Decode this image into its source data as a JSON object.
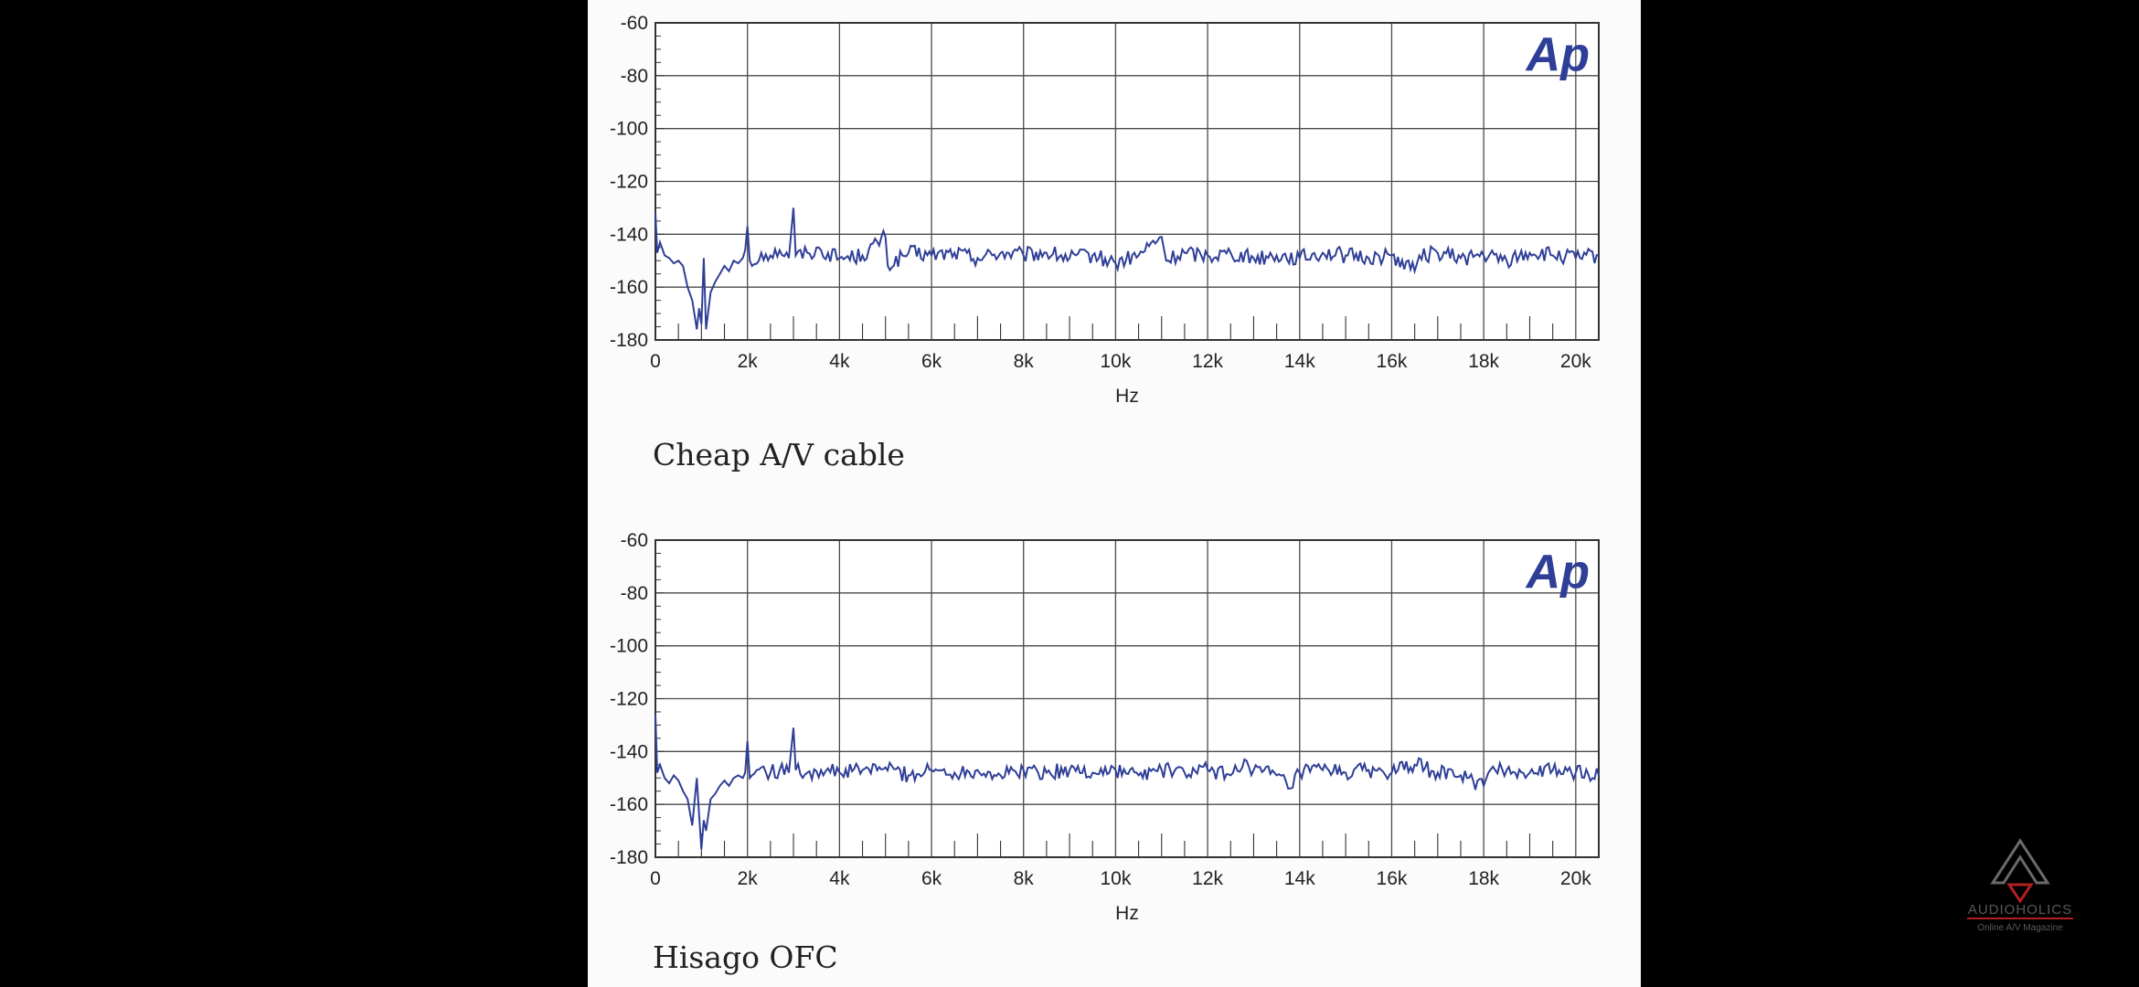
{
  "chart_data": [
    {
      "type": "line",
      "caption": "Cheap A/V cable",
      "logo_text": "Ap",
      "xlabel": "Hz",
      "ylabel": "",
      "xlim": [
        0,
        20500
      ],
      "ylim": [
        -180,
        -60
      ],
      "grid": true,
      "x_ticks": [
        0,
        2000,
        4000,
        6000,
        8000,
        10000,
        12000,
        14000,
        16000,
        18000,
        20000
      ],
      "x_tick_labels": [
        "0",
        "2k",
        "4k",
        "6k",
        "8k",
        "10k",
        "12k",
        "14k",
        "16k",
        "18k",
        "20k"
      ],
      "y_ticks": [
        -60,
        -80,
        -100,
        -120,
        -140,
        -160,
        -180
      ],
      "y_tick_labels": [
        "-60",
        "-80",
        "-100",
        "-120",
        "-140",
        "-160",
        "-180"
      ],
      "series": [
        {
          "color": "#2f3f97",
          "noise_floor_db": -148,
          "points": [
            [
              0,
              -132
            ],
            [
              40,
              -147
            ],
            [
              100,
              -143
            ],
            [
              200,
              -148
            ],
            [
              300,
              -149
            ],
            [
              400,
              -151
            ],
            [
              500,
              -150
            ],
            [
              600,
              -152
            ],
            [
              700,
              -160
            ],
            [
              800,
              -165
            ],
            [
              900,
              -176
            ],
            [
              950,
              -168
            ],
            [
              1000,
              -174
            ],
            [
              1050,
              -149
            ],
            [
              1100,
              -176
            ],
            [
              1200,
              -162
            ],
            [
              1300,
              -158
            ],
            [
              1400,
              -155
            ],
            [
              1500,
              -152
            ],
            [
              1600,
              -154
            ],
            [
              1700,
              -150
            ],
            [
              1800,
              -151
            ],
            [
              1900,
              -149
            ],
            [
              1950,
              -146
            ],
            [
              2000,
              -137
            ],
            [
              2050,
              -150
            ],
            [
              2100,
              -152
            ],
            [
              2300,
              -147
            ],
            [
              2500,
              -148
            ],
            [
              2700,
              -146
            ],
            [
              2900,
              -149
            ],
            [
              3000,
              -130
            ],
            [
              3050,
              -148
            ],
            [
              3300,
              -147
            ],
            [
              3600,
              -146
            ],
            [
              4000,
              -149
            ],
            [
              4500,
              -148
            ],
            [
              5000,
              -141
            ],
            [
              5050,
              -152
            ],
            [
              5500,
              -147
            ],
            [
              6000,
              -148
            ],
            [
              6500,
              -147
            ],
            [
              7000,
              -149
            ],
            [
              7500,
              -147
            ],
            [
              8000,
              -148
            ],
            [
              8500,
              -147
            ],
            [
              9000,
              -149
            ],
            [
              9500,
              -148
            ],
            [
              10000,
              -151
            ],
            [
              10500,
              -148
            ],
            [
              11000,
              -141
            ],
            [
              11100,
              -150
            ],
            [
              11500,
              -147
            ],
            [
              12000,
              -148
            ],
            [
              12500,
              -147
            ],
            [
              13000,
              -149
            ],
            [
              13500,
              -148
            ],
            [
              14000,
              -149
            ],
            [
              14500,
              -147
            ],
            [
              15000,
              -148
            ],
            [
              15500,
              -149
            ],
            [
              16000,
              -148
            ],
            [
              16500,
              -154
            ],
            [
              16600,
              -148
            ],
            [
              17000,
              -147
            ],
            [
              17500,
              -149
            ],
            [
              18000,
              -148
            ],
            [
              18500,
              -150
            ],
            [
              19000,
              -147
            ],
            [
              19500,
              -148
            ],
            [
              20000,
              -149
            ],
            [
              20500,
              -148
            ]
          ]
        }
      ]
    },
    {
      "type": "line",
      "caption": "Hisago OFC",
      "logo_text": "Ap",
      "xlabel": "Hz",
      "ylabel": "",
      "xlim": [
        0,
        20500
      ],
      "ylim": [
        -180,
        -60
      ],
      "grid": true,
      "x_ticks": [
        0,
        2000,
        4000,
        6000,
        8000,
        10000,
        12000,
        14000,
        16000,
        18000,
        20000
      ],
      "x_tick_labels": [
        "0",
        "2k",
        "4k",
        "6k",
        "8k",
        "10k",
        "12k",
        "14k",
        "16k",
        "18k",
        "20k"
      ],
      "y_ticks": [
        -60,
        -80,
        -100,
        -120,
        -140,
        -160,
        -180
      ],
      "y_tick_labels": [
        "-60",
        "-80",
        "-100",
        "-120",
        "-140",
        "-160",
        "-180"
      ],
      "series": [
        {
          "color": "#2f3f97",
          "noise_floor_db": -148,
          "points": [
            [
              0,
              -126
            ],
            [
              40,
              -148
            ],
            [
              100,
              -145
            ],
            [
              200,
              -150
            ],
            [
              300,
              -152
            ],
            [
              400,
              -149
            ],
            [
              500,
              -151
            ],
            [
              600,
              -155
            ],
            [
              700,
              -158
            ],
            [
              800,
              -168
            ],
            [
              900,
              -150
            ],
            [
              950,
              -164
            ],
            [
              1000,
              -177
            ],
            [
              1050,
              -166
            ],
            [
              1100,
              -170
            ],
            [
              1200,
              -158
            ],
            [
              1300,
              -156
            ],
            [
              1400,
              -153
            ],
            [
              1500,
              -151
            ],
            [
              1600,
              -153
            ],
            [
              1700,
              -150
            ],
            [
              1800,
              -149
            ],
            [
              1900,
              -150
            ],
            [
              1950,
              -148
            ],
            [
              2000,
              -136
            ],
            [
              2050,
              -150
            ],
            [
              2100,
              -149
            ],
            [
              2300,
              -146
            ],
            [
              2500,
              -148
            ],
            [
              2700,
              -147
            ],
            [
              2900,
              -148
            ],
            [
              3000,
              -131
            ],
            [
              3050,
              -147
            ],
            [
              3300,
              -148
            ],
            [
              3600,
              -147
            ],
            [
              4000,
              -148
            ],
            [
              4500,
              -147
            ],
            [
              5000,
              -146
            ],
            [
              5500,
              -149
            ],
            [
              6000,
              -147
            ],
            [
              6500,
              -148
            ],
            [
              7000,
              -147
            ],
            [
              7500,
              -149
            ],
            [
              8000,
              -147
            ],
            [
              8500,
              -148
            ],
            [
              9000,
              -147
            ],
            [
              9500,
              -148
            ],
            [
              10000,
              -147
            ],
            [
              10500,
              -149
            ],
            [
              11000,
              -147
            ],
            [
              11500,
              -148
            ],
            [
              12000,
              -147
            ],
            [
              12500,
              -149
            ],
            [
              12800,
              -143
            ],
            [
              13000,
              -147
            ],
            [
              13500,
              -149
            ],
            [
              13800,
              -154
            ],
            [
              14000,
              -148
            ],
            [
              14500,
              -147
            ],
            [
              15000,
              -148
            ],
            [
              15500,
              -147
            ],
            [
              16000,
              -148
            ],
            [
              16500,
              -145
            ],
            [
              17000,
              -148
            ],
            [
              17500,
              -149
            ],
            [
              18000,
              -153
            ],
            [
              18100,
              -148
            ],
            [
              18500,
              -147
            ],
            [
              19000,
              -148
            ],
            [
              19500,
              -147
            ],
            [
              20000,
              -148
            ],
            [
              20500,
              -149
            ]
          ]
        }
      ]
    }
  ],
  "watermark": {
    "brand": "AUDIOHOLICS",
    "tagline": "Online A/V Magazine"
  }
}
